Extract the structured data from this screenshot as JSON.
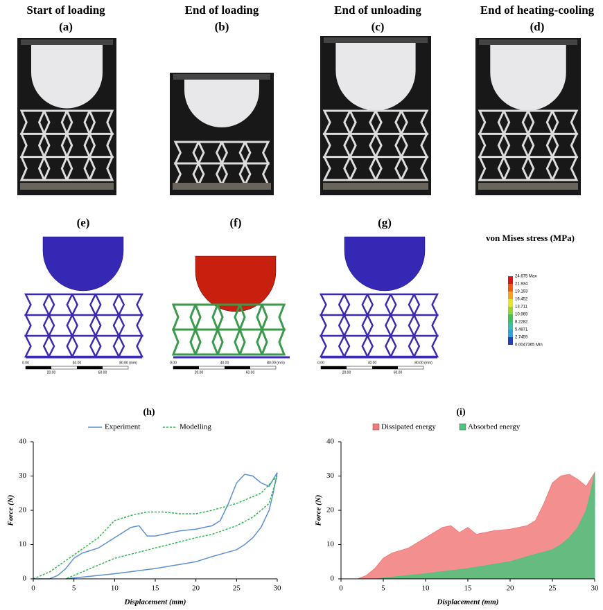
{
  "panels": {
    "photos": [
      {
        "title": "Start of loading",
        "label": "(a)"
      },
      {
        "title": "End of loading",
        "label": "(b)"
      },
      {
        "title": "End of unloading",
        "label": "(c)"
      },
      {
        "title": "End of heating-cooling",
        "label": "(d)"
      }
    ],
    "simulations": [
      {
        "label": "(e)"
      },
      {
        "label": "(f)"
      },
      {
        "label": "(g)"
      }
    ],
    "scale_bar": {
      "top": [
        "0.00",
        "40.00",
        "80.00 (mm)"
      ],
      "bottom": [
        "20.00",
        "60.00"
      ]
    }
  },
  "colorbar": {
    "title": "von Mises stress (MPa)",
    "labels": [
      "24.675 Max",
      "21.934",
      "19.193",
      "16.452",
      "13.711",
      "10.969",
      "8.2282",
      "5.4871",
      "2.7459",
      "0.0047365 Min"
    ]
  },
  "chart_data": [
    {
      "type": "line",
      "title": "(h)",
      "x_label": "Displacement (mm)",
      "y_label": "Force (N)",
      "xlim": [
        0,
        30
      ],
      "xticks": [
        0,
        5,
        10,
        15,
        20,
        25,
        30
      ],
      "ylim": [
        0,
        40
      ],
      "yticks": [
        0,
        10,
        20,
        30,
        40
      ],
      "series": [
        {
          "name": "Experiment",
          "color": "#5b8fd6",
          "dashed": false,
          "x": [
            0,
            2,
            3,
            4,
            5,
            6,
            8,
            10,
            12,
            13,
            14,
            15,
            16,
            18,
            20,
            22,
            23,
            24,
            25,
            26,
            27,
            28,
            29,
            30,
            29.5,
            29,
            28,
            27,
            26,
            25,
            22,
            20,
            15,
            10,
            6,
            4
          ],
          "values": [
            0,
            0,
            1,
            3,
            6,
            7.5,
            9,
            12,
            15,
            15.5,
            12.5,
            12.5,
            13,
            14,
            14.5,
            15.5,
            17,
            22,
            28,
            30.5,
            30,
            28,
            27,
            31,
            25,
            20,
            15,
            12,
            10,
            8.5,
            6.5,
            5,
            3,
            1.5,
            0.5,
            0
          ]
        },
        {
          "name": "Modelling",
          "color": "#2db84d",
          "dashed": true,
          "x": [
            0,
            2,
            5,
            8,
            10,
            12,
            14,
            16,
            18,
            20,
            22,
            25,
            28,
            30,
            29,
            27,
            25,
            22,
            20,
            15,
            10,
            7,
            5,
            4
          ],
          "values": [
            0,
            2,
            7,
            12,
            17,
            18.5,
            19.5,
            19.5,
            19,
            19,
            20,
            22,
            25,
            30,
            22,
            18,
            15.5,
            13,
            12,
            9,
            6,
            3,
            1,
            0
          ]
        }
      ]
    },
    {
      "type": "area",
      "title": "(i)",
      "x_label": "Displacement (mm)",
      "y_label": "Force (N)",
      "xlim": [
        0,
        30
      ],
      "xticks": [
        0,
        5,
        10,
        15,
        20,
        25,
        30
      ],
      "ylim": [
        0,
        40
      ],
      "yticks": [
        0,
        10,
        20,
        30,
        40
      ],
      "series": [
        {
          "name": "Dissipated energy",
          "color": "#f27b7b",
          "x": [
            0,
            2,
            3,
            4,
            5,
            6,
            8,
            10,
            12,
            13,
            14,
            15,
            16,
            18,
            20,
            22,
            23,
            24,
            25,
            26,
            27,
            28,
            29,
            30
          ],
          "values": [
            0,
            0,
            1,
            3,
            6,
            7.5,
            9,
            12,
            15,
            15.5,
            13.5,
            15,
            13,
            14,
            14.5,
            15.5,
            17,
            22,
            28,
            30,
            30.5,
            29,
            27,
            31
          ]
        },
        {
          "name": "Absorbed energy",
          "color": "#4cc47e",
          "x": [
            4,
            6,
            10,
            15,
            20,
            22,
            25,
            26,
            27,
            28,
            29,
            29.5,
            30
          ],
          "values": [
            0,
            0.5,
            1.5,
            3,
            5,
            6.5,
            8.5,
            10,
            12,
            15,
            20,
            25,
            31
          ]
        }
      ]
    }
  ]
}
